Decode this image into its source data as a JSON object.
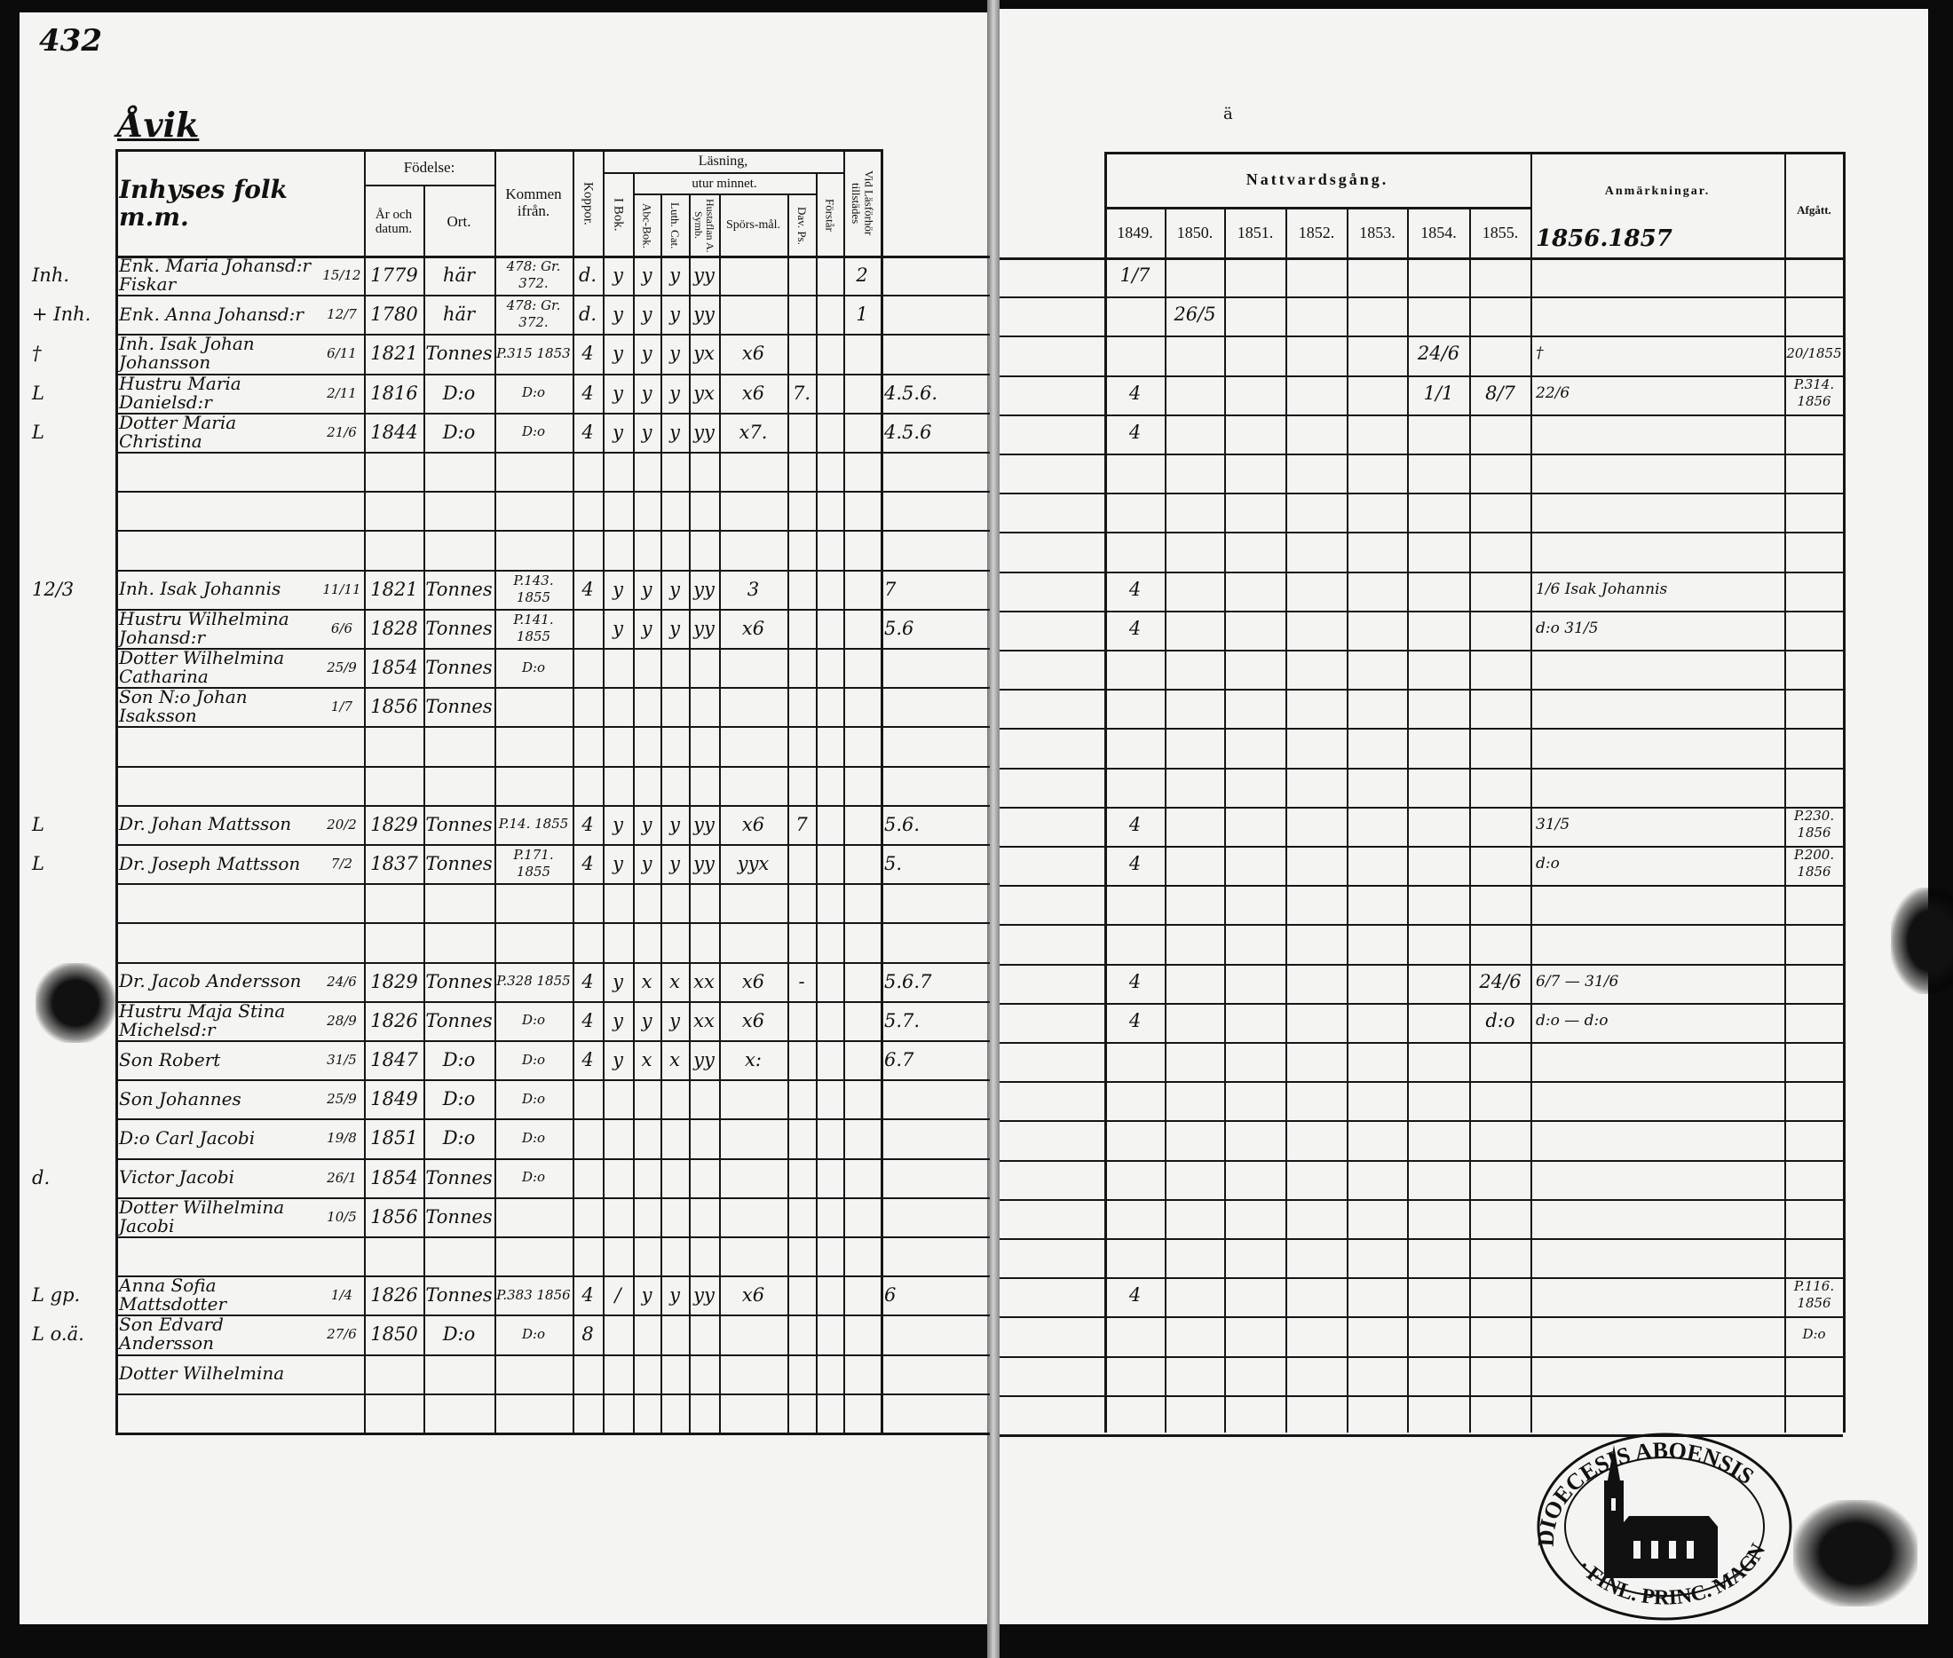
{
  "page_number": "432",
  "place": "Åvik",
  "right_page_mark": "ä",
  "left_header": {
    "name_col": "Inhyses folk m.m.",
    "fodelse": "Födelse:",
    "ar_och_datum": "År och datum.",
    "ort": "Ort.",
    "kommen_ifran": "Kommen ifrån.",
    "koppor": "Koppor.",
    "lasning": "Läsning,",
    "i_bok": "I Bok.",
    "utur_minnet": "utur minnet.",
    "abc_bok": "Abc-Bok.",
    "luth_cat": "Luth. Cat.",
    "hustaflan": "Hustaflan A. Symb.",
    "sporsmal": "Spörs-mål.",
    "dav_ps": "Dav. Ps.",
    "forstar": "Förstår",
    "vid_lasforhor": "Vid Läsförhör tillstädes"
  },
  "right_header": {
    "nattvardsgang": "Nattvardsgång.",
    "years": [
      "1849.",
      "1850.",
      "1851.",
      "1852.",
      "1853.",
      "1854.",
      "1855."
    ],
    "extra_years": "1856.1857",
    "anmarkningar": "Anmärkningar.",
    "afgatt": "Afgått."
  },
  "rows": [
    {
      "margin": "Inh.",
      "name": "Enk. Maria Johansd:r Fiskar",
      "date": "15/12",
      "year": "1779",
      "ort": "här",
      "kommen": "478: Gr. 372.",
      "koppor": "d.",
      "ibok": "y",
      "abc": "y",
      "luth": "y",
      "hust": "yy",
      "vid": "2",
      "y1849": "1/7"
    },
    {
      "margin": "+ Inh.",
      "name": "Enk. Anna Johansd:r",
      "date": "12/7",
      "year": "1780",
      "ort": "här",
      "kommen": "478: Gr. 372.",
      "koppor": "d.",
      "ibok": "y",
      "abc": "y",
      "luth": "y",
      "hust": "yy",
      "vid": "1",
      "y1850": "26/5"
    },
    {
      "margin": "†",
      "name": "Inh. Isak Johan Johansson",
      "date": "6/11",
      "year": "1821",
      "ort": "Tonnes",
      "kommen": "P.315 1853",
      "koppor": "4",
      "ibok": "y",
      "abc": "y",
      "luth": "y",
      "hust": "yx",
      "spors": "x6",
      "y1854": "24/6",
      "anm": "†",
      "afgatt": "20/1855"
    },
    {
      "margin": "L",
      "name": "Hustru Maria Danielsd:r",
      "date": "2/11",
      "year": "1816",
      "ort": "D:o",
      "kommen": "D:o",
      "koppor": "4",
      "ibok": "y",
      "abc": "y",
      "luth": "y",
      "hust": "yx",
      "spors": "x6",
      "dav": "7.",
      "extra": "4.5.6.",
      "y1849": "4",
      "y1854": "1/1",
      "y1855": "8/7",
      "anm": "22/6",
      "afgatt": "P.314. 1856"
    },
    {
      "margin": "L",
      "name": "Dotter Maria Christina",
      "date": "21/6",
      "year": "1844",
      "ort": "D:o",
      "kommen": "D:o",
      "koppor": "4",
      "ibok": "y",
      "abc": "y",
      "luth": "y",
      "hust": "yy",
      "spors": "x7.",
      "extra": "4.5.6",
      "y1849": "4"
    },
    {},
    {},
    {},
    {
      "margin": "12/3",
      "name": "Inh. Isak Johannis",
      "date": "11/11",
      "year": "1821",
      "ort": "Tonnes",
      "kommen": "P.143. 1855",
      "koppor": "4",
      "ibok": "y",
      "abc": "y",
      "luth": "y",
      "hust": "yy",
      "spors": "3",
      "extra": "7",
      "y1849": "4",
      "anm": "1/6 Isak Johannis"
    },
    {
      "name": "Hustru Wilhelmina Johansd:r",
      "date": "6/6",
      "year": "1828",
      "ort": "Tonnes",
      "kommen": "P.141. 1855",
      "ibok": "y",
      "abc": "y",
      "luth": "y",
      "hust": "yy",
      "spors": "x6",
      "extra": "5.6",
      "y1849": "4",
      "anm": "d:o 31/5"
    },
    {
      "name": "Dotter Wilhelmina Catharina",
      "date": "25/9",
      "year": "1854",
      "ort": "Tonnes",
      "kommen": "D:o"
    },
    {
      "name": "Son N:o Johan Isaksson",
      "date": "1/7",
      "year": "1856",
      "ort": "Tonnes"
    },
    {},
    {},
    {
      "margin": "L",
      "name": "Dr. Johan Mattsson",
      "date": "20/2",
      "year": "1829",
      "ort": "Tonnes",
      "kommen": "P.14. 1855",
      "koppor": "4",
      "ibok": "y",
      "abc": "y",
      "luth": "y",
      "hust": "yy",
      "spors": "x6",
      "dav": "7",
      "extra": "5.6.",
      "y1849": "4",
      "anm": "31/5",
      "afgatt": "P.230. 1856"
    },
    {
      "margin": "L",
      "name": "Dr. Joseph Mattsson",
      "date": "7/2",
      "year": "1837",
      "ort": "Tonnes",
      "kommen": "P.171. 1855",
      "koppor": "4",
      "ibok": "y",
      "abc": "y",
      "luth": "y",
      "hust": "yy",
      "spors": "yyx",
      "extra": "5.",
      "y1849": "4",
      "anm": "d:o",
      "afgatt": "P.200. 1856"
    },
    {},
    {},
    {
      "name": "Dr. Jacob Andersson",
      "date": "24/6",
      "year": "1829",
      "ort": "Tonnes",
      "kommen": "P.328 1855",
      "koppor": "4",
      "ibok": "y",
      "abc": "x",
      "luth": "x",
      "hust": "xx",
      "spors": "x6",
      "dav": "-",
      "extra": "5.6.7",
      "y1849": "4",
      "y1855": "24/6",
      "anm": "6/7 — 31/6"
    },
    {
      "name": "Hustru Maja Stina Michelsd:r",
      "date": "28/9",
      "year": "1826",
      "ort": "Tonnes",
      "kommen": "D:o",
      "koppor": "4",
      "ibok": "y",
      "abc": "y",
      "luth": "y",
      "hust": "xx",
      "spors": "x6",
      "extra": "5.7.",
      "y1849": "4",
      "y1855": "d:o",
      "anm": "d:o — d:o"
    },
    {
      "name": "Son Robert",
      "date": "31/5",
      "year": "1847",
      "ort": "D:o",
      "kommen": "D:o",
      "koppor": "4",
      "ibok": "y",
      "abc": "x",
      "luth": "x",
      "hust": "yy",
      "spors": "x:",
      "extra": "6.7"
    },
    {
      "name": "Son Johannes",
      "date": "25/9",
      "year": "1849",
      "ort": "D:o",
      "kommen": "D:o"
    },
    {
      "name": "D:o Carl Jacobi",
      "date": "19/8",
      "year": "1851",
      "ort": "D:o",
      "kommen": "D:o"
    },
    {
      "margin": "d.",
      "name": "Victor Jacobi",
      "date": "26/1",
      "year": "1854",
      "ort": "Tonnes",
      "kommen": "D:o"
    },
    {
      "name": "Dotter Wilhelmina Jacobi",
      "date": "10/5",
      "year": "1856",
      "ort": "Tonnes"
    },
    {},
    {
      "margin": "L gp.",
      "name": "Anna Sofia Mattsdotter",
      "date": "1/4",
      "year": "1826",
      "ort": "Tonnes",
      "kommen": "P.383 1856",
      "koppor": "4",
      "ibok": "/",
      "abc": "y",
      "luth": "y",
      "hust": "yy",
      "spors": "x6",
      "extra": "6",
      "y1849": "4",
      "afgatt": "P.116. 1856"
    },
    {
      "margin": "L o.ä.",
      "name": "Son Edvard Andersson",
      "date": "27/6",
      "year": "1850",
      "ort": "D:o",
      "kommen": "D:o",
      "koppor": "8",
      "afgatt": "D:o"
    },
    {
      "name": "Dotter Wilhelmina"
    },
    {}
  ],
  "stamp": {
    "text": "DIOECESIS ABOENSIS · MAGNI PRINC. FINL.",
    "icon": "cathedral-seal"
  },
  "colors": {
    "ink": "#111111",
    "paper": "#f4f4f2",
    "background": "#0b0b0b"
  }
}
